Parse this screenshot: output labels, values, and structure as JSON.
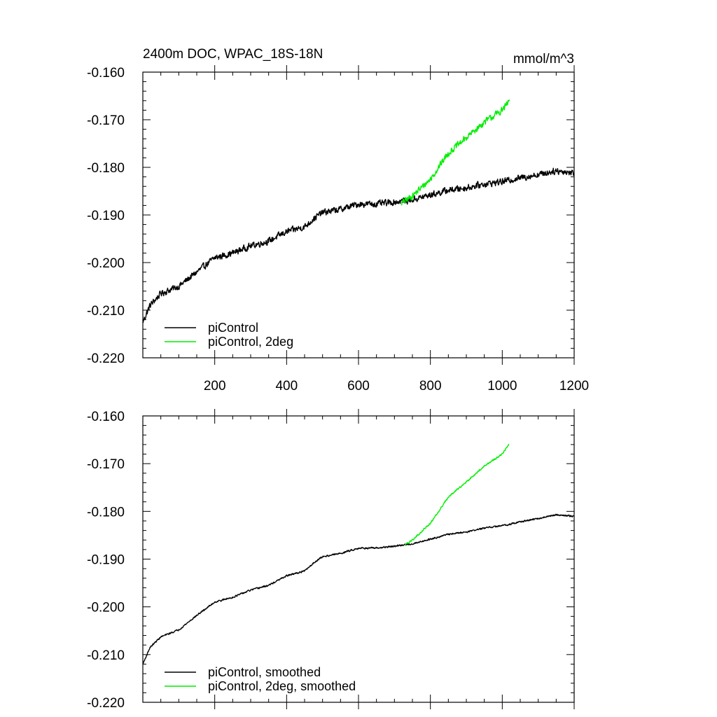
{
  "chart_data": [
    {
      "type": "line",
      "title_left": "2400m DOC, WPAC_18S-18N",
      "title_right": "mmol/m^3",
      "xlim": [
        0,
        1200
      ],
      "ylim": [
        -0.22,
        -0.16
      ],
      "x_ticks": [
        200,
        400,
        600,
        800,
        1000,
        1200
      ],
      "x_tick_labels": [
        "200",
        "400",
        "600",
        "800",
        "1000",
        "1200"
      ],
      "y_ticks": [
        -0.16,
        -0.17,
        -0.18,
        -0.19,
        -0.2,
        -0.21,
        -0.22
      ],
      "y_tick_labels": [
        "-0.160",
        "-0.170",
        "-0.180",
        "-0.190",
        "-0.200",
        "-0.210",
        "-0.220"
      ],
      "legend_position": "bottom-left",
      "series": [
        {
          "name": "piControl",
          "color": "#000000",
          "noise": 0.0006,
          "x": [
            0,
            20,
            50,
            100,
            150,
            200,
            250,
            300,
            350,
            400,
            450,
            480,
            500,
            550,
            600,
            650,
            700,
            750,
            800,
            850,
            900,
            950,
            1000,
            1050,
            1100,
            1150,
            1200
          ],
          "y": [
            -0.2125,
            -0.209,
            -0.2065,
            -0.205,
            -0.202,
            -0.199,
            -0.198,
            -0.1965,
            -0.1955,
            -0.1935,
            -0.1925,
            -0.1905,
            -0.1895,
            -0.1888,
            -0.1877,
            -0.1877,
            -0.1873,
            -0.1868,
            -0.1858,
            -0.1848,
            -0.1843,
            -0.1835,
            -0.183,
            -0.1822,
            -0.1815,
            -0.1807,
            -0.1812
          ]
        },
        {
          "name": "piControl, 2deg",
          "color": "#00ee00",
          "noise": 0.0006,
          "x": [
            720,
            750,
            800,
            850,
            900,
            950,
            1000,
            1020
          ],
          "y": [
            -0.1875,
            -0.186,
            -0.1825,
            -0.177,
            -0.1738,
            -0.1705,
            -0.168,
            -0.166
          ]
        }
      ]
    },
    {
      "type": "line",
      "xlim": [
        0,
        1200
      ],
      "ylim": [
        -0.22,
        -0.16
      ],
      "x_ticks": [
        200,
        400,
        600,
        800,
        1000,
        1200
      ],
      "y_ticks": [
        -0.16,
        -0.17,
        -0.18,
        -0.19,
        -0.2,
        -0.21,
        -0.22
      ],
      "y_tick_labels": [
        "-0.160",
        "-0.170",
        "-0.180",
        "-0.190",
        "-0.200",
        "-0.210",
        "-0.220"
      ],
      "legend_position": "bottom-left",
      "series": [
        {
          "name": "piControl, smoothed",
          "color": "#000000",
          "noise": 0.00015,
          "x": [
            0,
            20,
            50,
            100,
            150,
            200,
            250,
            300,
            350,
            400,
            450,
            480,
            500,
            550,
            600,
            650,
            700,
            750,
            800,
            850,
            900,
            950,
            1000,
            1050,
            1100,
            1150,
            1200
          ],
          "y": [
            -0.212,
            -0.2085,
            -0.2063,
            -0.2048,
            -0.2018,
            -0.199,
            -0.198,
            -0.1965,
            -0.1955,
            -0.1935,
            -0.1925,
            -0.1905,
            -0.1895,
            -0.1888,
            -0.1877,
            -0.1877,
            -0.1873,
            -0.1868,
            -0.1858,
            -0.1848,
            -0.1843,
            -0.1835,
            -0.183,
            -0.1822,
            -0.1815,
            -0.1807,
            -0.181
          ]
        },
        {
          "name": "piControl, 2deg, smoothed",
          "color": "#00ee00",
          "noise": 0.00015,
          "x": [
            730,
            750,
            800,
            850,
            900,
            950,
            1000,
            1018
          ],
          "y": [
            -0.187,
            -0.186,
            -0.1825,
            -0.177,
            -0.1738,
            -0.1705,
            -0.168,
            -0.166
          ]
        }
      ]
    }
  ]
}
